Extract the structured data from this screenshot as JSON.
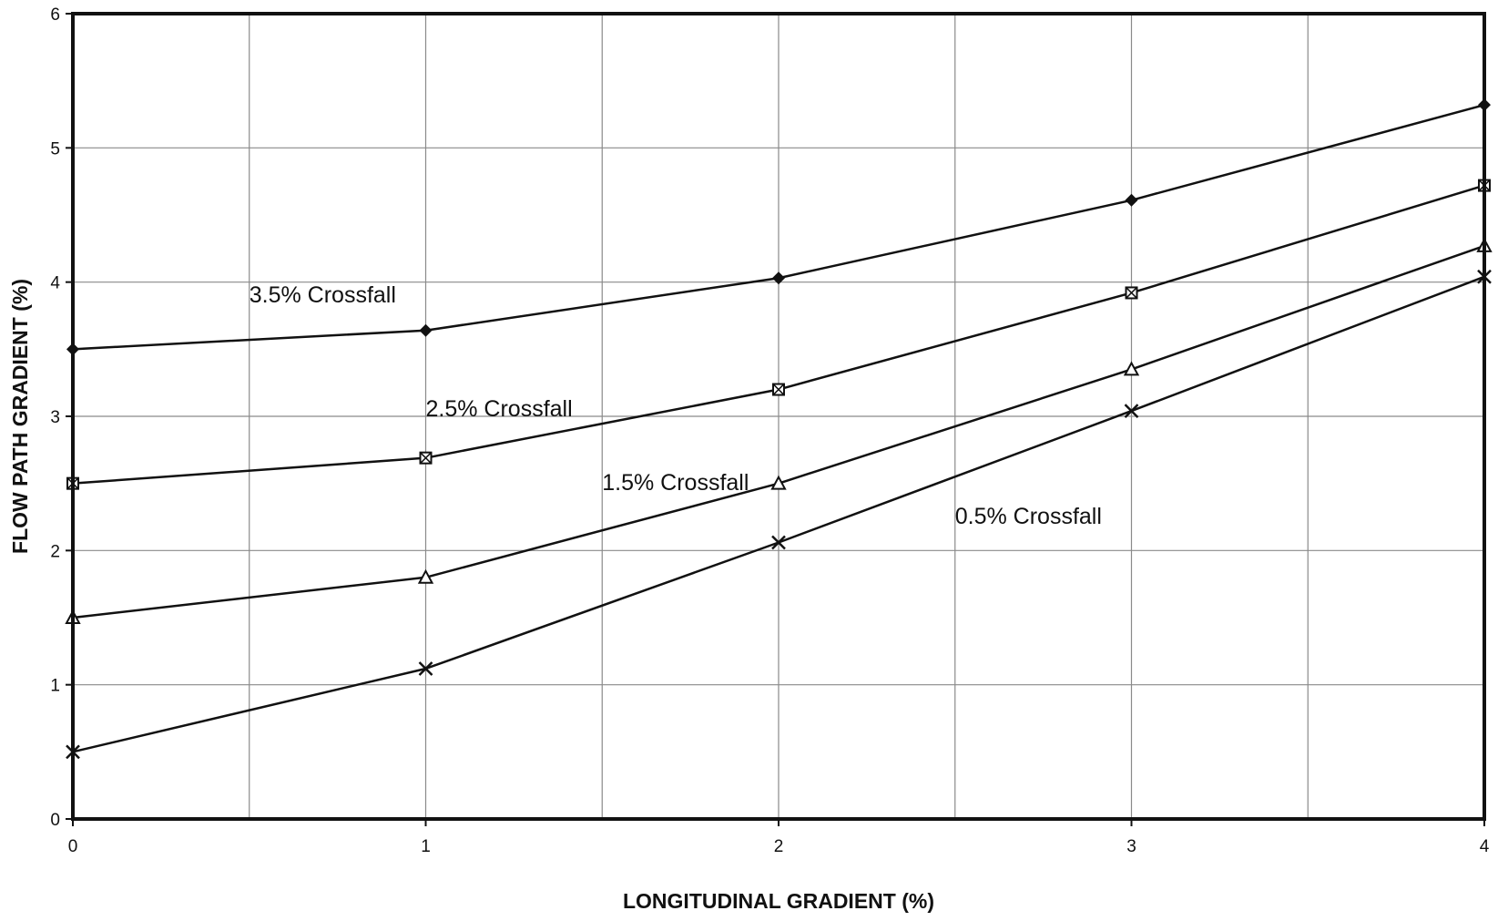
{
  "chart_data": {
    "type": "line",
    "xlabel": "LONGITUDINAL GRADIENT (%)",
    "ylabel": "FLOW PATH GRADIENT (%)",
    "xlim": [
      0,
      4
    ],
    "ylim": [
      0,
      6
    ],
    "x_ticks": [
      0,
      1,
      2,
      3,
      4
    ],
    "y_ticks": [
      0,
      1,
      2,
      3,
      4,
      5,
      6
    ],
    "x_grid": [
      0,
      0.5,
      1,
      1.5,
      2,
      2.5,
      3,
      3.5,
      4
    ],
    "grid": true,
    "x": [
      0,
      1,
      2,
      3,
      4
    ],
    "series": [
      {
        "name": "3.5% Crossfall",
        "marker": "diamond",
        "values": [
          3.5,
          3.64,
          4.03,
          4.61,
          5.32
        ],
        "label_anchor": {
          "x": 0.5,
          "y": 3.85
        }
      },
      {
        "name": "2.5% Crossfall",
        "marker": "square",
        "values": [
          2.5,
          2.69,
          3.2,
          3.92,
          4.72
        ],
        "label_anchor": {
          "x": 1.0,
          "y": 3.0
        }
      },
      {
        "name": "1.5%  Crossfall",
        "marker": "triangle",
        "values": [
          1.5,
          1.8,
          2.5,
          3.35,
          4.27
        ],
        "label_anchor": {
          "x": 1.5,
          "y": 2.45
        }
      },
      {
        "name": "0.5% Crossfall",
        "marker": "x",
        "values": [
          0.5,
          1.12,
          2.06,
          3.04,
          4.04
        ],
        "label_anchor": {
          "x": 2.5,
          "y": 2.2
        }
      }
    ],
    "colors": {
      "line": "#111111",
      "grid": "#8a8a8a",
      "frame": "#111111",
      "background": "#ffffff"
    }
  }
}
